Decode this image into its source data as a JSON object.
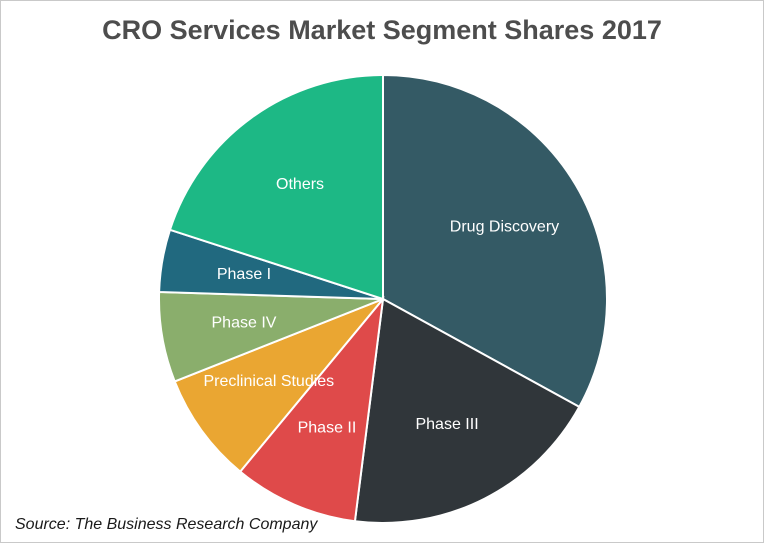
{
  "chart_data": {
    "type": "pie",
    "title": "CRO Services Market Segment Shares 2017",
    "slices": [
      {
        "label": "Drug Discovery",
        "value": 33,
        "color": "#345a65"
      },
      {
        "label": "Phase III",
        "value": 19,
        "color": "#30363a"
      },
      {
        "label": "Phase II",
        "value": 9,
        "color": "#df4a4a"
      },
      {
        "label": "Preclinical Studies",
        "value": 8,
        "color": "#eaa632"
      },
      {
        "label": "Phase IV",
        "value": 6.5,
        "color": "#8aae6c"
      },
      {
        "label": "Phase I",
        "value": 4.5,
        "color": "#21697f"
      },
      {
        "label": "Others",
        "value": 20,
        "color": "#1db885"
      }
    ]
  },
  "source": "Source: The Business Research Company"
}
